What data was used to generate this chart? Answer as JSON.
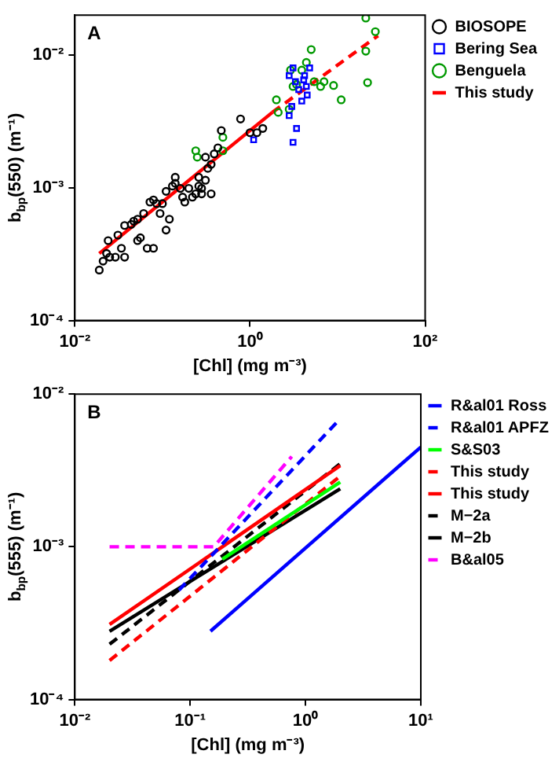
{
  "chart_data": [
    {
      "type": "scatter",
      "title": "A",
      "xlabel": "[Chl] (mg m⁻³)",
      "ylabel": "b$_{bp}$(550) (m⁻¹)",
      "log": "xy",
      "grid": false,
      "legend": "right",
      "xlim": [
        0.01,
        100
      ],
      "xticks": [
        {
          "value": 0.01,
          "label": "10⁻²"
        },
        {
          "value": 1,
          "label": "10⁰"
        },
        {
          "value": 100,
          "label": "10²"
        }
      ],
      "ylim": [
        0.0001,
        0.02
      ],
      "yticks": [
        {
          "value": 0.0001,
          "label": "10⁻⁴"
        },
        {
          "value": 0.001,
          "label": "10⁻³"
        },
        {
          "value": 0.01,
          "label": "10⁻²"
        }
      ],
      "series": [
        {
          "name": "BIOSOPE",
          "type": "scatter",
          "marker": "circle",
          "color": "#000000",
          "x": [
            0.019,
            0.021,
            0.023,
            0.025,
            0.029,
            0.024,
            0.034,
            0.037,
            0.031,
            0.037,
            0.044,
            0.047,
            0.052,
            0.056,
            0.052,
            0.067,
            0.079,
            0.061,
            0.072,
            0.079,
            0.086,
            0.1,
            0.094,
            0.11,
            0.12,
            0.11,
            0.13,
            0.14,
            0.16,
            0.17,
            0.18,
            0.14,
            0.2,
            0.22,
            0.24,
            0.26,
            0.28,
            0.26,
            0.31,
            0.33,
            0.36,
            0.39,
            0.43,
            0.31,
            0.47,
            0.78,
            1.0,
            1.2,
            1.4,
            0.28,
            0.36
          ],
          "values": [
            0.00024,
            0.00028,
            0.00032,
            0.0003,
            0.0003,
            0.0004,
            0.00035,
            0.0003,
            0.00044,
            0.00052,
            0.00053,
            0.00056,
            0.0004,
            0.00042,
            0.00058,
            0.00035,
            0.00035,
            0.00064,
            0.00078,
            0.00081,
            0.00076,
            0.00076,
            0.00064,
            0.00048,
            0.00058,
            0.00094,
            0.00103,
            0.0012,
            0.00099,
            0.00085,
            0.00078,
            0.00108,
            0.00099,
            0.00085,
            0.0009,
            0.00103,
            0.00099,
            0.0012,
            0.00114,
            0.0014,
            0.0015,
            0.0018,
            0.002,
            0.0017,
            0.0027,
            0.0033,
            0.0026,
            0.0026,
            0.0028,
            0.0009,
            0.0009
          ]
        },
        {
          "name": "Bering Sea",
          "type": "scatter",
          "marker": "square",
          "color": "#0000ff",
          "x": [
            1.1,
            3.1,
            3.4,
            2.8,
            3.0,
            3.9,
            3.3,
            4.2,
            4.8,
            3.1,
            4.4,
            2.8,
            3.6,
            4.5,
            4.1
          ],
          "values": [
            0.0023,
            0.0022,
            0.0028,
            0.0035,
            0.0041,
            0.0045,
            0.0063,
            0.007,
            0.008,
            0.008,
            0.0058,
            0.007,
            0.0055,
            0.005,
            0.0065
          ]
        },
        {
          "name": "Benguela",
          "type": "scatter",
          "marker": "circle",
          "color": "#009900",
          "x": [
            0.24,
            0.25,
            0.49,
            0.49,
            2.0,
            2.1,
            2.8,
            2.9,
            3.1,
            3.4,
            3.9,
            4.4,
            5.0,
            5.4,
            6.4,
            7.0,
            9.0,
            11,
            21,
            27,
            21,
            22
          ],
          "values": [
            0.0019,
            0.0017,
            0.0024,
            0.0019,
            0.0046,
            0.0037,
            0.0039,
            0.0077,
            0.0058,
            0.006,
            0.0077,
            0.0088,
            0.011,
            0.0063,
            0.0058,
            0.0063,
            0.0059,
            0.0046,
            0.019,
            0.015,
            0.0107,
            0.0062
          ]
        },
        {
          "name": "This study",
          "type": "line",
          "marker": "none",
          "line_style": "solid",
          "color": "#ff0000",
          "x": [
            0.019,
            1.8
          ],
          "values": [
            0.00032,
            0.0037
          ]
        },
        {
          "type": "line",
          "marker": "none",
          "line_style": "dashed",
          "color": "#ff0000",
          "x": [
            1.8,
            29
          ],
          "values": [
            0.0037,
            0.014
          ]
        }
      ]
    },
    {
      "type": "line",
      "title": "B",
      "xlabel": "[Chl] (mg m⁻³)",
      "ylabel": "b$_{bp}$(555) (m⁻¹)",
      "log": "xy",
      "grid": false,
      "legend": "right",
      "marker": "none",
      "xlim": [
        0.01,
        10
      ],
      "xticks": [
        {
          "value": 0.01,
          "label": "10⁻²"
        },
        {
          "value": 0.1,
          "label": "10⁻¹"
        },
        {
          "value": 1,
          "label": "10⁰"
        },
        {
          "value": 10,
          "label": "10¹"
        }
      ],
      "ylim": [
        0.0001,
        0.01
      ],
      "yticks": [
        {
          "value": 0.0001,
          "label": "10⁻⁴"
        },
        {
          "value": 0.001,
          "label": "10⁻³"
        },
        {
          "value": 0.01,
          "label": "10⁻²"
        }
      ],
      "series": [
        {
          "name": "R&al01 Ross",
          "line_style": "solid",
          "color": "#0000ff",
          "x": [
            0.15,
            10
          ],
          "values": [
            0.00028,
            0.0045
          ]
        },
        {
          "name": "R&al01 APFZ",
          "line_style": "dashed",
          "color": "#0000ff",
          "x": [
            0.08,
            2
          ],
          "values": [
            0.00052,
            0.0069
          ]
        },
        {
          "name": "S&S03",
          "line_style": "solid",
          "color": "#00ff00",
          "x": [
            0.19,
            2
          ],
          "values": [
            0.00083,
            0.00265
          ]
        },
        {
          "name": "This study",
          "line_style": "dashed",
          "color": "#ff0000",
          "x": [
            0.02,
            2
          ],
          "values": [
            0.00018,
            0.0029
          ]
        },
        {
          "name": "This study",
          "line_style": "solid",
          "color": "#ff0000",
          "x": [
            0.02,
            2
          ],
          "values": [
            0.00031,
            0.0034
          ]
        },
        {
          "name": "M−2a",
          "line_style": "dashed",
          "color": "#000000",
          "x": [
            0.02,
            2
          ],
          "values": [
            0.00023,
            0.0035
          ]
        },
        {
          "name": "M−2b",
          "line_style": "solid",
          "color": "#000000",
          "x": [
            0.02,
            2
          ],
          "values": [
            0.00028,
            0.0024
          ]
        },
        {
          "name": "B&al05",
          "line_style": "dashed",
          "color": "#ff00ff",
          "x": [
            0.02,
            0.16,
            0.76
          ],
          "values": [
            0.001,
            0.001,
            0.0039
          ]
        }
      ]
    }
  ]
}
